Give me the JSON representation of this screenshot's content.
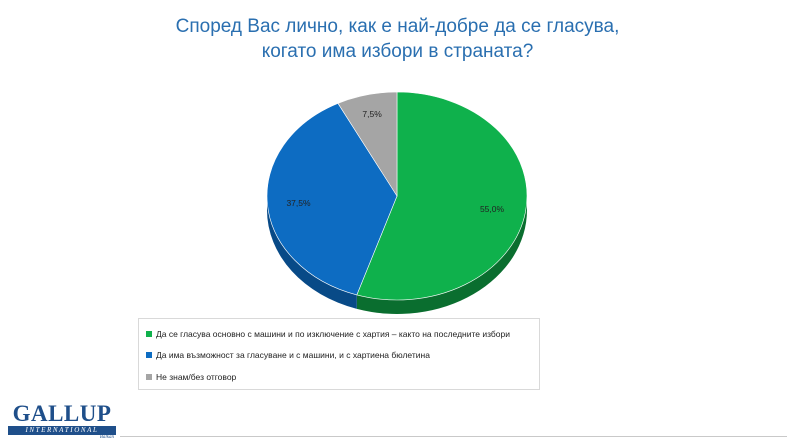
{
  "chart_data": {
    "type": "pie",
    "title": "Според Вас лично, как е най-добре да се гласува, когато има избори в страната?",
    "title_lines": [
      "Според Вас лично, как е най-добре да се гласува,",
      "когато има избори в страната?"
    ],
    "categories": [
      "Да се гласува основно с машини и по изключение с хартия – както на последните избори",
      "Да има възможност за гласуване и с машини, и с хартиена бюлетина",
      "Не знам/без отговор"
    ],
    "values": [
      55.0,
      37.5,
      7.5
    ],
    "data_labels": [
      "55,0%",
      "37,5%",
      "7,5%"
    ],
    "colors": [
      "#0fb14c",
      "#0d6cc2",
      "#a5a5a5"
    ],
    "side_colors": [
      "#0a6e2f",
      "#084a87",
      "#6f6f6f"
    ],
    "legend_position": "bottom",
    "style": "3d"
  },
  "logo": {
    "main": "GALLUP",
    "sub": "INTERNATIONAL",
    "region": "Balkan"
  }
}
